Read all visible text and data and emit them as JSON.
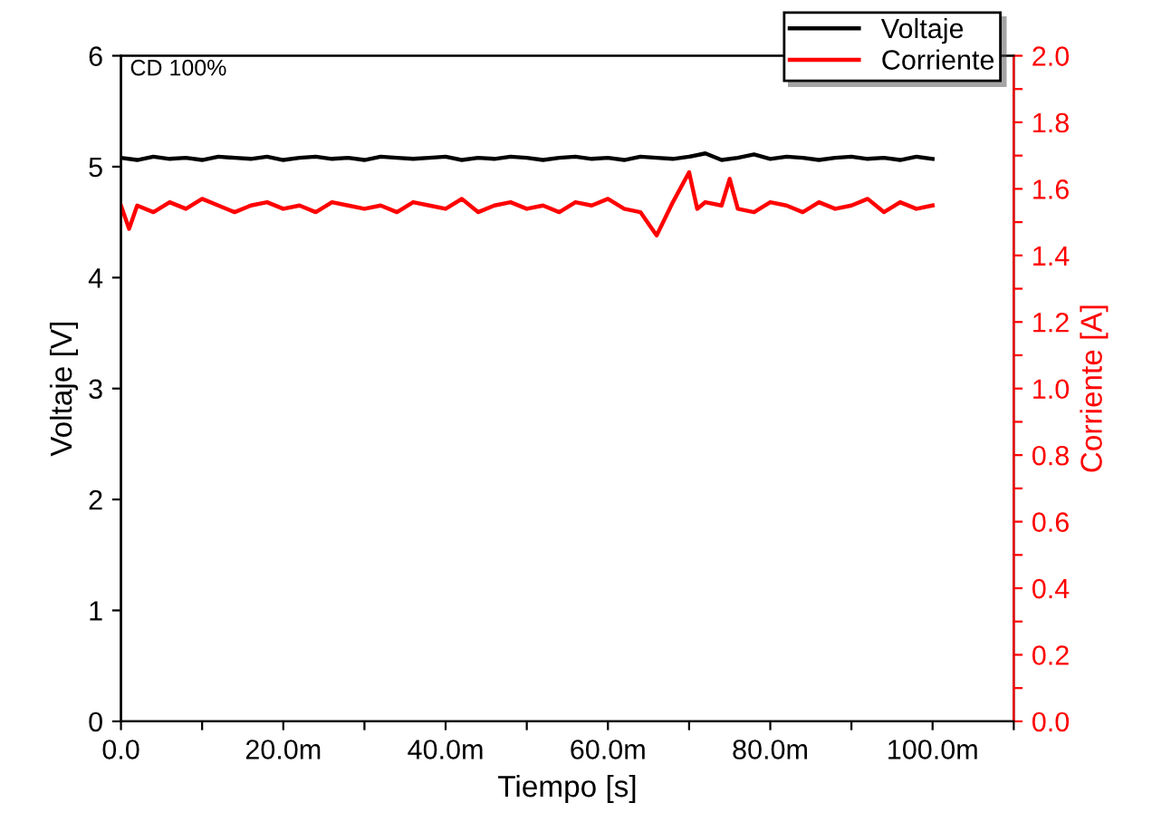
{
  "chart_data": {
    "type": "line",
    "xlabel": "Tiempo [s]",
    "ylabel": "Voltaje [V]",
    "y2label": "Corriente [A]",
    "annotations": [
      "CD 100%"
    ],
    "xlim": [
      0,
      110
    ],
    "xticks": [
      {
        "value": 0,
        "label": "0.0"
      },
      {
        "value": 10,
        "label": null
      },
      {
        "value": 20,
        "label": "20.0m"
      },
      {
        "value": 30,
        "label": null
      },
      {
        "value": 40,
        "label": "40.0m"
      },
      {
        "value": 50,
        "label": null
      },
      {
        "value": 60,
        "label": "60.0m"
      },
      {
        "value": 70,
        "label": null
      },
      {
        "value": 80,
        "label": "80.0m"
      },
      {
        "value": 90,
        "label": null
      },
      {
        "value": 100,
        "label": "100.0m"
      },
      {
        "value": 110,
        "label": null
      }
    ],
    "ylim": [
      0,
      6
    ],
    "yticks": [
      0,
      1,
      2,
      3,
      4,
      5,
      6
    ],
    "y2lim": [
      0,
      2.0
    ],
    "y2ticks": [
      {
        "value": 0,
        "label": "0.0"
      },
      {
        "value": 0.1,
        "label": null
      },
      {
        "value": 0.2,
        "label": "0.2"
      },
      {
        "value": 0.3,
        "label": null
      },
      {
        "value": 0.4,
        "label": "0.4"
      },
      {
        "value": 0.5,
        "label": null
      },
      {
        "value": 0.6,
        "label": "0.6"
      },
      {
        "value": 0.7,
        "label": null
      },
      {
        "value": 0.8,
        "label": "0.8"
      },
      {
        "value": 0.9,
        "label": null
      },
      {
        "value": 1.0,
        "label": "1.0"
      },
      {
        "value": 1.1,
        "label": null
      },
      {
        "value": 1.2,
        "label": "1.2"
      },
      {
        "value": 1.3,
        "label": null
      },
      {
        "value": 1.4,
        "label": "1.4"
      },
      {
        "value": 1.5,
        "label": null
      },
      {
        "value": 1.6,
        "label": "1.6"
      },
      {
        "value": 1.7,
        "label": null
      },
      {
        "value": 1.8,
        "label": "1.8"
      },
      {
        "value": 1.9,
        "label": null
      },
      {
        "value": 2.0,
        "label": "2.0"
      }
    ],
    "grid": false,
    "legend": "top right",
    "marker": "none",
    "line_style": "solid",
    "series": [
      {
        "name": "Voltaje",
        "color": "#000000",
        "x": [
          0,
          2,
          4,
          6,
          8,
          10,
          12,
          14,
          16,
          18,
          20,
          22,
          24,
          26,
          28,
          30,
          32,
          34,
          36,
          38,
          40,
          42,
          44,
          46,
          48,
          50,
          52,
          54,
          56,
          58,
          60,
          62,
          64,
          66,
          68,
          70,
          72,
          74,
          76,
          78,
          80,
          82,
          84,
          86,
          88,
          90,
          92,
          94,
          96,
          98,
          100
        ],
        "values": [
          5.08,
          5.06,
          5.09,
          5.07,
          5.08,
          5.06,
          5.09,
          5.08,
          5.07,
          5.09,
          5.06,
          5.08,
          5.09,
          5.07,
          5.08,
          5.06,
          5.09,
          5.08,
          5.07,
          5.08,
          5.09,
          5.06,
          5.08,
          5.07,
          5.09,
          5.08,
          5.06,
          5.08,
          5.09,
          5.07,
          5.08,
          5.06,
          5.09,
          5.08,
          5.07,
          5.09,
          5.12,
          5.06,
          5.08,
          5.11,
          5.07,
          5.09,
          5.08,
          5.06,
          5.08,
          5.09,
          5.07,
          5.08,
          5.06,
          5.09,
          5.07
        ]
      },
      {
        "name": "Corriente",
        "color": "#ff0000",
        "axis": "y2",
        "x": [
          0,
          1,
          2,
          4,
          6,
          8,
          10,
          12,
          14,
          16,
          18,
          20,
          22,
          24,
          26,
          28,
          30,
          32,
          34,
          36,
          38,
          40,
          42,
          44,
          46,
          48,
          50,
          52,
          54,
          56,
          58,
          60,
          62,
          64,
          66,
          68,
          70,
          71,
          72,
          74,
          75,
          76,
          78,
          80,
          82,
          84,
          86,
          88,
          90,
          92,
          94,
          96,
          98,
          100
        ],
        "values": [
          1.55,
          1.48,
          1.55,
          1.53,
          1.56,
          1.54,
          1.57,
          1.55,
          1.53,
          1.55,
          1.56,
          1.54,
          1.55,
          1.53,
          1.56,
          1.55,
          1.54,
          1.55,
          1.53,
          1.56,
          1.55,
          1.54,
          1.57,
          1.53,
          1.55,
          1.56,
          1.54,
          1.55,
          1.53,
          1.56,
          1.55,
          1.57,
          1.54,
          1.53,
          1.46,
          1.56,
          1.65,
          1.54,
          1.56,
          1.55,
          1.63,
          1.54,
          1.53,
          1.56,
          1.55,
          1.53,
          1.56,
          1.54,
          1.55,
          1.57,
          1.53,
          1.56,
          1.54,
          1.55
        ]
      }
    ]
  }
}
